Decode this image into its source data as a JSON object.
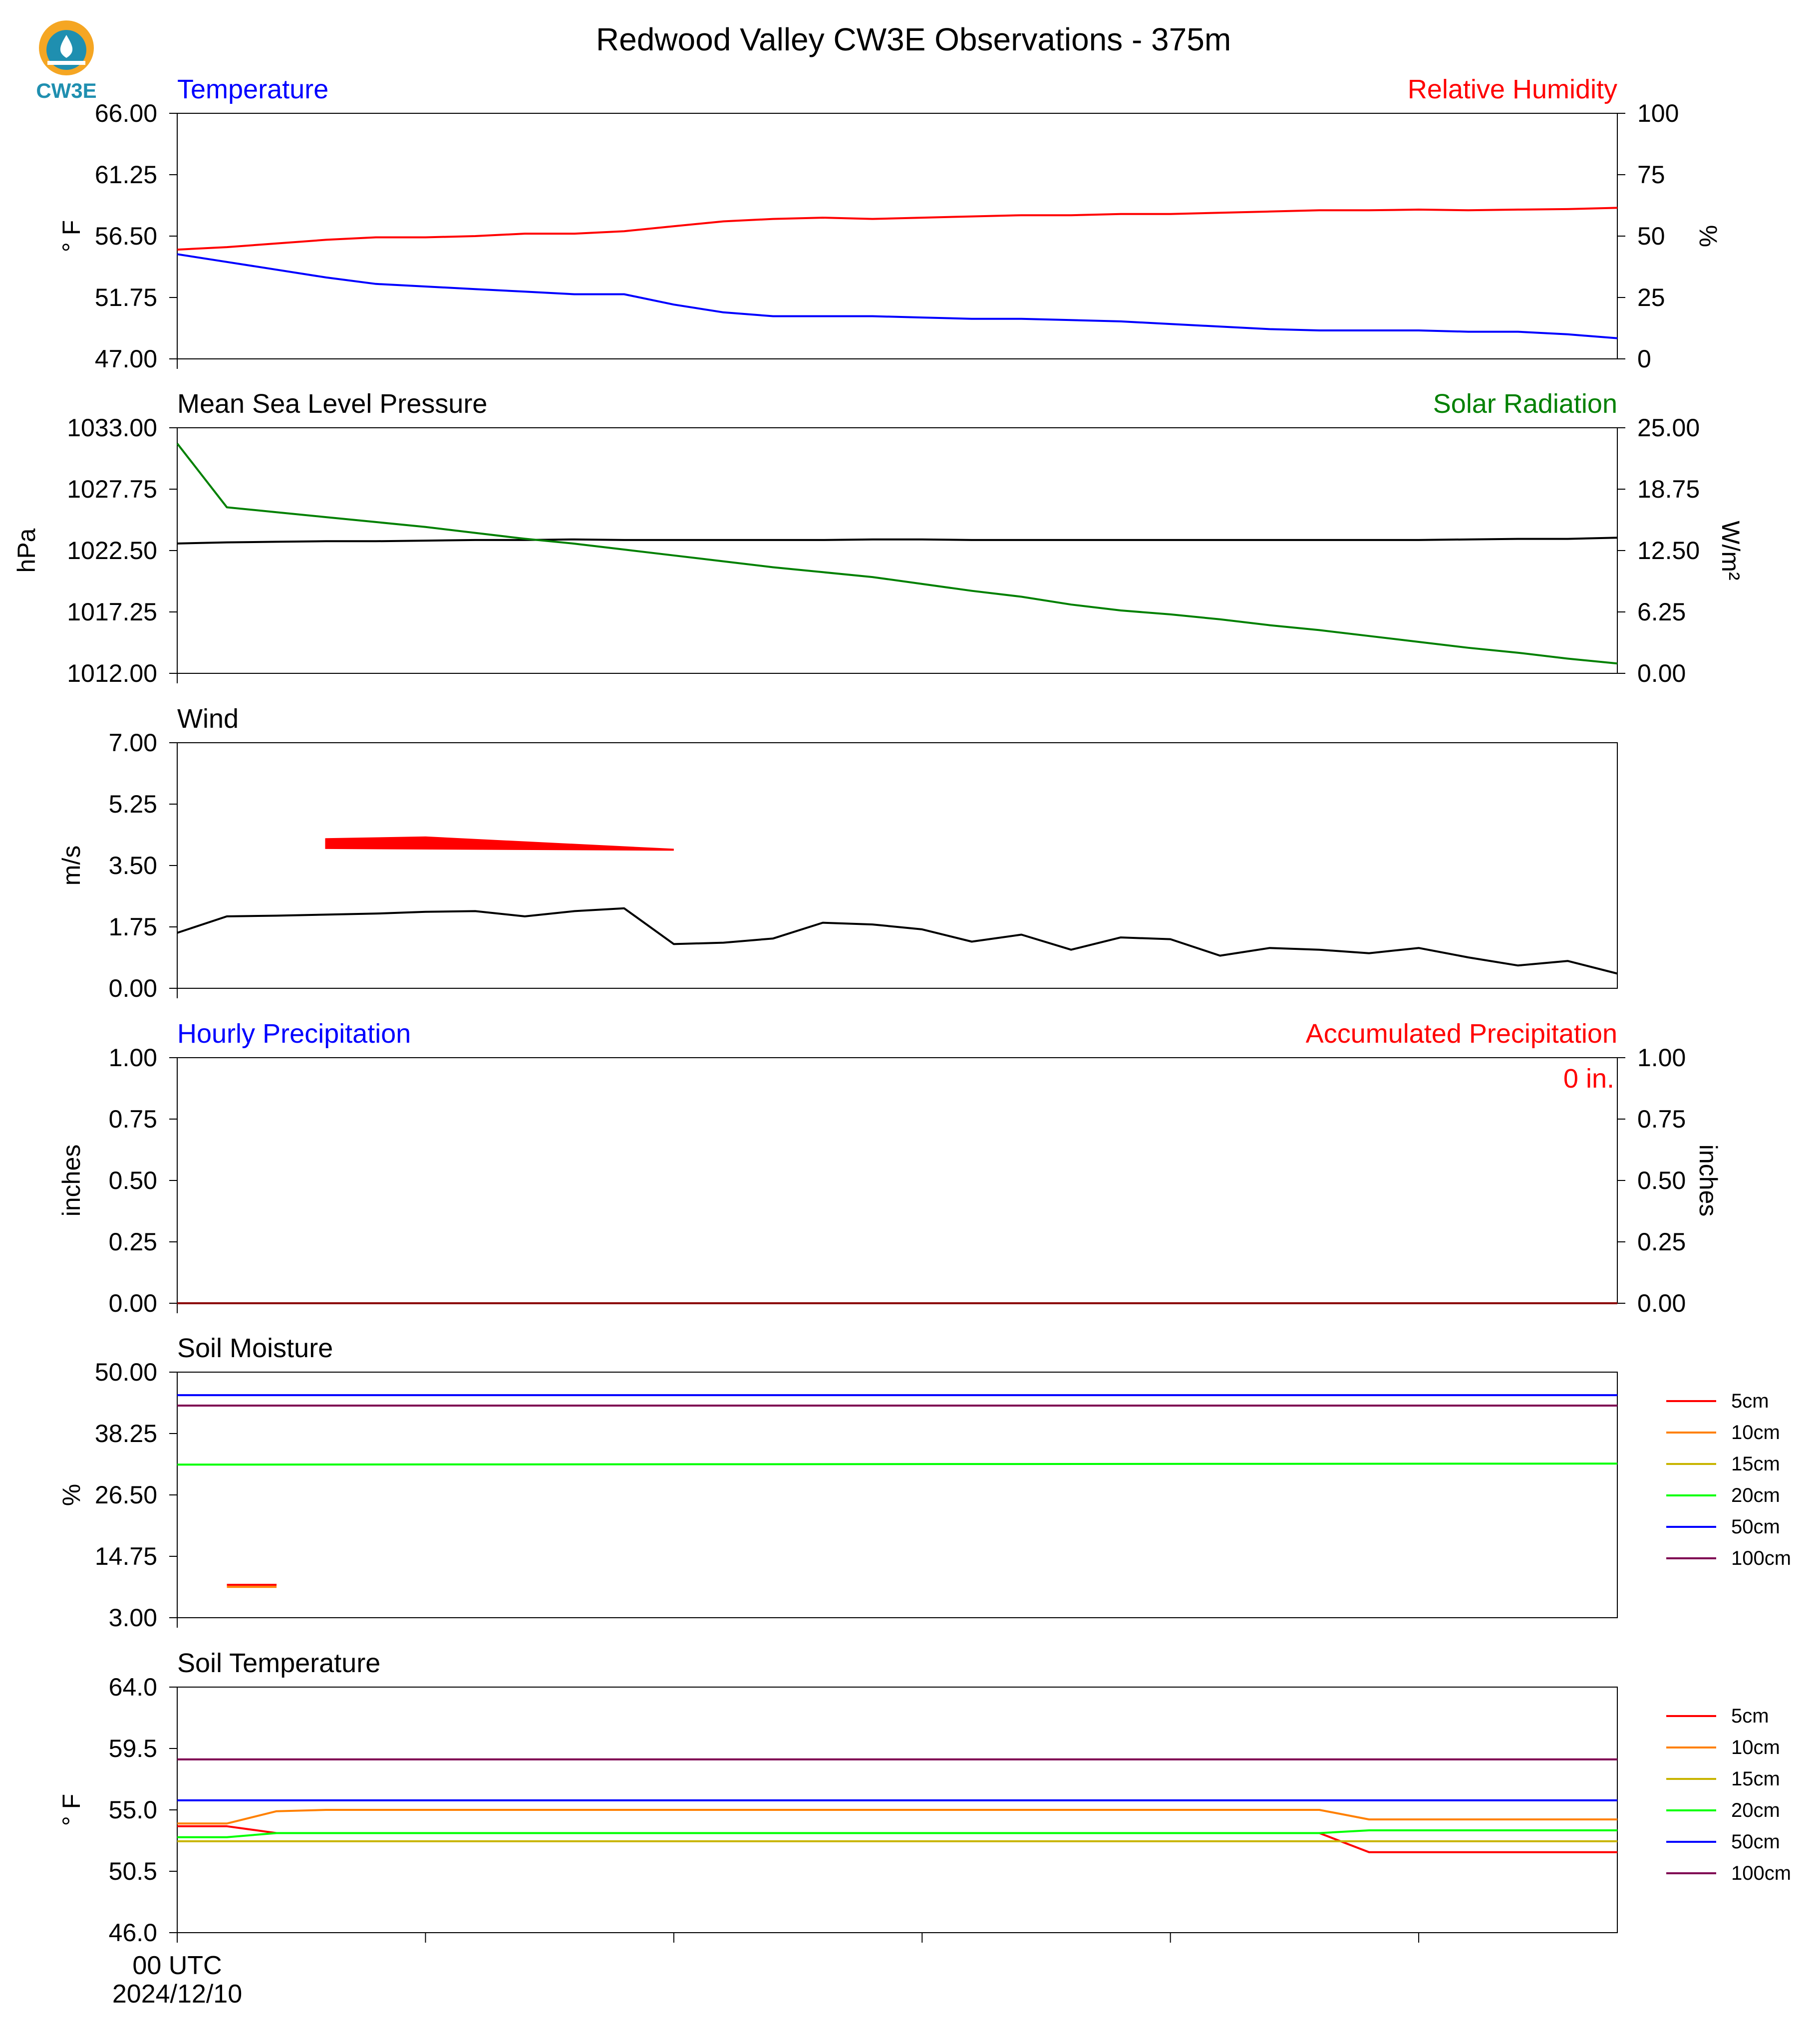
{
  "page": {
    "title": "Redwood Valley CW3E Observations - 375m",
    "logo_text": "CW3E",
    "x_tick_labels": [
      "00 UTC",
      "2024/12/10"
    ],
    "colors": {
      "red": "#ff0000",
      "blue": "#0000ff",
      "green": "#008000",
      "black": "#000000",
      "logo_teal": "#1f8fb0",
      "logo_orange": "#f5a623"
    }
  },
  "chart_data": [
    {
      "id": "temp_rh",
      "type": "line",
      "title": "Temperature",
      "title_right": "Relative Humidity",
      "ylabel": "° F",
      "ylabel_right": "%",
      "ylim": [
        47,
        66
      ],
      "y_ticks": [
        "66.00",
        "61.25",
        "56.50",
        "51.75",
        "47.00"
      ],
      "ylim_right": [
        0,
        100
      ],
      "y_ticks_right": [
        "100",
        "75",
        "50",
        "25",
        "0"
      ],
      "x": [
        0,
        1,
        2,
        3,
        4,
        5,
        6,
        7,
        8,
        9,
        10,
        11,
        12,
        13,
        14,
        15,
        16,
        17,
        18,
        19,
        20,
        21,
        22,
        23,
        24,
        25,
        26,
        27,
        28,
        29
      ],
      "series": [
        {
          "axis": "left",
          "color": "#0000ff",
          "values": [
            55.1,
            54.5,
            53.9,
            53.3,
            52.8,
            52.6,
            52.4,
            52.2,
            52.0,
            52.0,
            51.2,
            50.6,
            50.3,
            50.3,
            50.3,
            50.2,
            50.1,
            50.1,
            50.0,
            49.9,
            49.7,
            49.5,
            49.3,
            49.2,
            49.2,
            49.2,
            49.1,
            49.1,
            48.9,
            48.6
          ]
        },
        {
          "axis": "right",
          "color": "#ff0000",
          "values": [
            44.5,
            45.5,
            47,
            48.5,
            49.5,
            49.5,
            50,
            51,
            51,
            52,
            54,
            56,
            57,
            57.5,
            57,
            57.5,
            58,
            58.5,
            58.5,
            59,
            59,
            59.5,
            60,
            60.5,
            60.5,
            60.8,
            60.5,
            60.8,
            61,
            61.5
          ]
        }
      ]
    },
    {
      "id": "pressure_solar",
      "type": "line",
      "title": "Mean Sea Level Pressure",
      "title_right": "Solar Radiation",
      "ylabel": "hPa",
      "ylabel_right": "W/m²",
      "ylim": [
        1012,
        1033
      ],
      "y_ticks": [
        "1033.00",
        "1027.75",
        "1022.50",
        "1017.25",
        "1012.00"
      ],
      "ylim_right": [
        0,
        25
      ],
      "y_ticks_right": [
        "25.00",
        "18.75",
        "12.50",
        "6.25",
        "0.00"
      ],
      "x": [
        0,
        1,
        2,
        3,
        4,
        5,
        6,
        7,
        8,
        9,
        10,
        11,
        12,
        13,
        14,
        15,
        16,
        17,
        18,
        19,
        20,
        21,
        22,
        23,
        24,
        25,
        26,
        27,
        28,
        29
      ],
      "series": [
        {
          "axis": "left",
          "color": "#000000",
          "values": [
            1023.1,
            1023.2,
            1023.25,
            1023.3,
            1023.3,
            1023.35,
            1023.4,
            1023.4,
            1023.45,
            1023.4,
            1023.4,
            1023.4,
            1023.4,
            1023.4,
            1023.45,
            1023.45,
            1023.4,
            1023.4,
            1023.4,
            1023.4,
            1023.4,
            1023.4,
            1023.4,
            1023.4,
            1023.4,
            1023.4,
            1023.45,
            1023.5,
            1023.5,
            1023.6
          ]
        },
        {
          "axis": "right",
          "color": "#008000",
          "values": [
            23.4,
            16.9,
            16.4,
            15.9,
            15.4,
            14.9,
            14.3,
            13.7,
            13.2,
            12.6,
            12.0,
            11.4,
            10.8,
            10.3,
            9.8,
            9.1,
            8.4,
            7.8,
            7.0,
            6.4,
            6.0,
            5.5,
            4.9,
            4.4,
            3.8,
            3.2,
            2.6,
            2.1,
            1.5,
            1.0
          ]
        }
      ]
    },
    {
      "id": "wind",
      "type": "line",
      "title": "Wind",
      "ylabel": "m/s",
      "ylim": [
        0,
        7
      ],
      "y_ticks": [
        "7.00",
        "5.25",
        "3.50",
        "1.75",
        "0.00"
      ],
      "x": [
        0,
        1,
        2,
        3,
        4,
        5,
        6,
        7,
        8,
        9,
        10,
        11,
        12,
        13,
        14,
        15,
        16,
        17,
        18,
        19,
        20,
        21,
        22,
        23,
        24,
        25,
        26,
        27,
        28,
        29
      ],
      "series": [
        {
          "color": "#000000",
          "values": [
            1.58,
            2.05,
            2.07,
            2.1,
            2.13,
            2.18,
            2.2,
            2.05,
            2.2,
            2.28,
            1.26,
            1.3,
            1.42,
            1.87,
            1.82,
            1.68,
            1.33,
            1.53,
            1.1,
            1.45,
            1.4,
            0.93,
            1.15,
            1.1,
            1.0,
            1.15,
            0.88,
            0.65,
            0.78,
            0.42
          ]
        }
      ],
      "gust_band": {
        "color": "#ff0000",
        "upper_x": [
          3,
          5,
          10
        ],
        "upper_y": [
          4.25,
          4.3,
          3.95
        ],
        "lower_x": [
          3,
          10
        ],
        "lower_y": [
          4.0,
          3.95
        ]
      }
    },
    {
      "id": "precip",
      "type": "line",
      "title": "Hourly Precipitation",
      "title_right": "Accumulated Precipitation",
      "annotation": "0 in.",
      "ylabel": "inches",
      "ylabel_right": "inches",
      "ylim": [
        0,
        1
      ],
      "y_ticks": [
        "1.00",
        "0.75",
        "0.50",
        "0.25",
        "0.00"
      ],
      "ylim_right": [
        0,
        1
      ],
      "y_ticks_right": [
        "1.00",
        "0.75",
        "0.50",
        "0.25",
        "0.00"
      ],
      "x": [
        0,
        29
      ],
      "series": [
        {
          "color": "#0000ff",
          "values": [
            0,
            0
          ]
        },
        {
          "color": "#8b0000",
          "values": [
            0,
            0
          ]
        }
      ]
    },
    {
      "id": "soil_moisture",
      "type": "line",
      "title": "Soil Moisture",
      "ylabel": "%",
      "ylim": [
        3,
        50
      ],
      "y_ticks": [
        "50.00",
        "38.25",
        "26.50",
        "14.75",
        "3.00"
      ],
      "legend": [
        {
          "label": "5cm",
          "color": "#ff0000"
        },
        {
          "label": "10cm",
          "color": "#ff8000"
        },
        {
          "label": "15cm",
          "color": "#c8b400"
        },
        {
          "label": "20cm",
          "color": "#00ff00"
        },
        {
          "label": "50cm",
          "color": "#0000ff"
        },
        {
          "label": "100cm",
          "color": "#7f0052"
        }
      ],
      "x": [
        0,
        29
      ],
      "series": [
        {
          "label": "5cm",
          "color": "#ff0000",
          "x": [
            1,
            2
          ],
          "values": [
            9.3,
            9.3
          ]
        },
        {
          "label": "10cm",
          "color": "#ff8000",
          "x": [
            1,
            2
          ],
          "values": [
            8.9,
            8.9
          ]
        },
        {
          "label": "20cm",
          "color": "#00ff00",
          "x": [
            0,
            29
          ],
          "values": [
            32.3,
            32.5
          ]
        },
        {
          "label": "50cm",
          "color": "#0000ff",
          "x": [
            0,
            29
          ],
          "values": [
            45.6,
            45.6
          ]
        },
        {
          "label": "100cm",
          "color": "#7f0052",
          "x": [
            0,
            29
          ],
          "values": [
            43.6,
            43.6
          ]
        }
      ]
    },
    {
      "id": "soil_temp",
      "type": "line",
      "title": "Soil Temperature",
      "ylabel": "° F",
      "ylim": [
        46,
        64
      ],
      "y_ticks": [
        "64.0",
        "59.5",
        "55.0",
        "50.5",
        "46.0"
      ],
      "legend": [
        {
          "label": "5cm",
          "color": "#ff0000"
        },
        {
          "label": "10cm",
          "color": "#ff8000"
        },
        {
          "label": "15cm",
          "color": "#c8b400"
        },
        {
          "label": "20cm",
          "color": "#00ff00"
        },
        {
          "label": "50cm",
          "color": "#0000ff"
        },
        {
          "label": "100cm",
          "color": "#7f0052"
        }
      ],
      "x_tick_positions": [
        0,
        5,
        10,
        15,
        20,
        25
      ],
      "series": [
        {
          "label": "5cm",
          "color": "#ff0000",
          "x": [
            0,
            1,
            2,
            23,
            24,
            29
          ],
          "values": [
            53.8,
            53.8,
            53.3,
            53.3,
            51.9,
            51.9
          ]
        },
        {
          "label": "10cm",
          "color": "#ff8000",
          "x": [
            0,
            1,
            2,
            3,
            23,
            24,
            29
          ],
          "values": [
            54.0,
            54.0,
            54.9,
            55.0,
            55.0,
            54.3,
            54.3
          ]
        },
        {
          "label": "15cm",
          "color": "#c8b400",
          "x": [
            0,
            29
          ],
          "values": [
            52.7,
            52.7
          ]
        },
        {
          "label": "20cm",
          "color": "#00ff00",
          "x": [
            0,
            1,
            2,
            23,
            24,
            29
          ],
          "values": [
            53.0,
            53.0,
            53.3,
            53.3,
            53.5,
            53.5
          ]
        },
        {
          "label": "50cm",
          "color": "#0000ff",
          "x": [
            0,
            29
          ],
          "values": [
            55.7,
            55.7
          ]
        },
        {
          "label": "100cm",
          "color": "#7f0052",
          "x": [
            0,
            29
          ],
          "values": [
            58.7,
            58.7
          ]
        }
      ]
    }
  ]
}
